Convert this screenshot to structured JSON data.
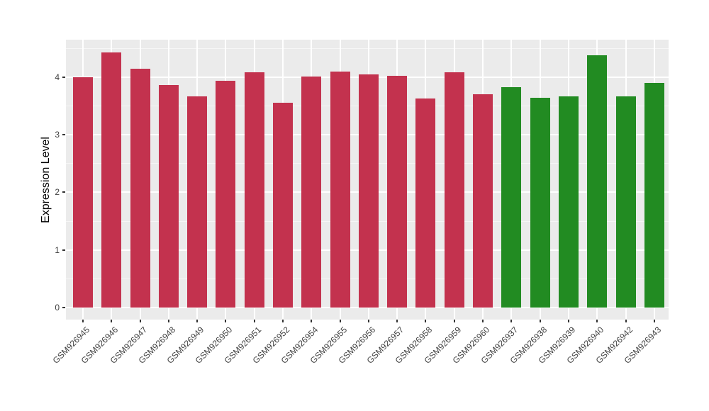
{
  "figure": {
    "background_color": "#FFFFFF",
    "panel_background_color": "#EBEBEB",
    "gridline_color": "#FFFFFF",
    "red_bar_color": "#C3324E",
    "green_bar_color": "#228B22",
    "axis_text_color": "#404040"
  },
  "chart_data": {
    "type": "bar",
    "title": "",
    "xlabel": "",
    "ylabel": "Expression Level",
    "categories": [
      "GSM926945",
      "GSM926946",
      "GSM926947",
      "GSM926948",
      "GSM926949",
      "GSM926950",
      "GSM926951",
      "GSM926952",
      "GSM926954",
      "GSM926955",
      "GSM926956",
      "GSM926957",
      "GSM926958",
      "GSM926959",
      "GSM926960",
      "GSM926937",
      "GSM926938",
      "GSM926939",
      "GSM926940",
      "GSM926942",
      "GSM926943"
    ],
    "values": [
      4.0,
      4.43,
      4.15,
      3.86,
      3.67,
      3.93,
      4.08,
      3.56,
      4.01,
      4.1,
      4.05,
      4.02,
      3.63,
      4.08,
      3.7,
      3.82,
      3.64,
      3.66,
      4.38,
      3.67,
      3.9
    ],
    "colors": [
      "#C3324E",
      "#C3324E",
      "#C3324E",
      "#C3324E",
      "#C3324E",
      "#C3324E",
      "#C3324E",
      "#C3324E",
      "#C3324E",
      "#C3324E",
      "#C3324E",
      "#C3324E",
      "#C3324E",
      "#C3324E",
      "#C3324E",
      "#228B22",
      "#228B22",
      "#228B22",
      "#228B22",
      "#228B22",
      "#228B22"
    ],
    "ytick_labels": [
      "0",
      "1",
      "2",
      "3",
      "4"
    ],
    "ytick_values": [
      0,
      1,
      2,
      3,
      4
    ],
    "yminor_values": [
      0.5,
      1.5,
      2.5,
      3.5,
      4.5
    ],
    "ylim": [
      -0.22,
      4.65
    ],
    "grid": "major and minor horizontal white gridlines, vertical white gridline at each category center, on gray panel",
    "legend_position": "none",
    "x_label_rotation_deg": 45
  }
}
